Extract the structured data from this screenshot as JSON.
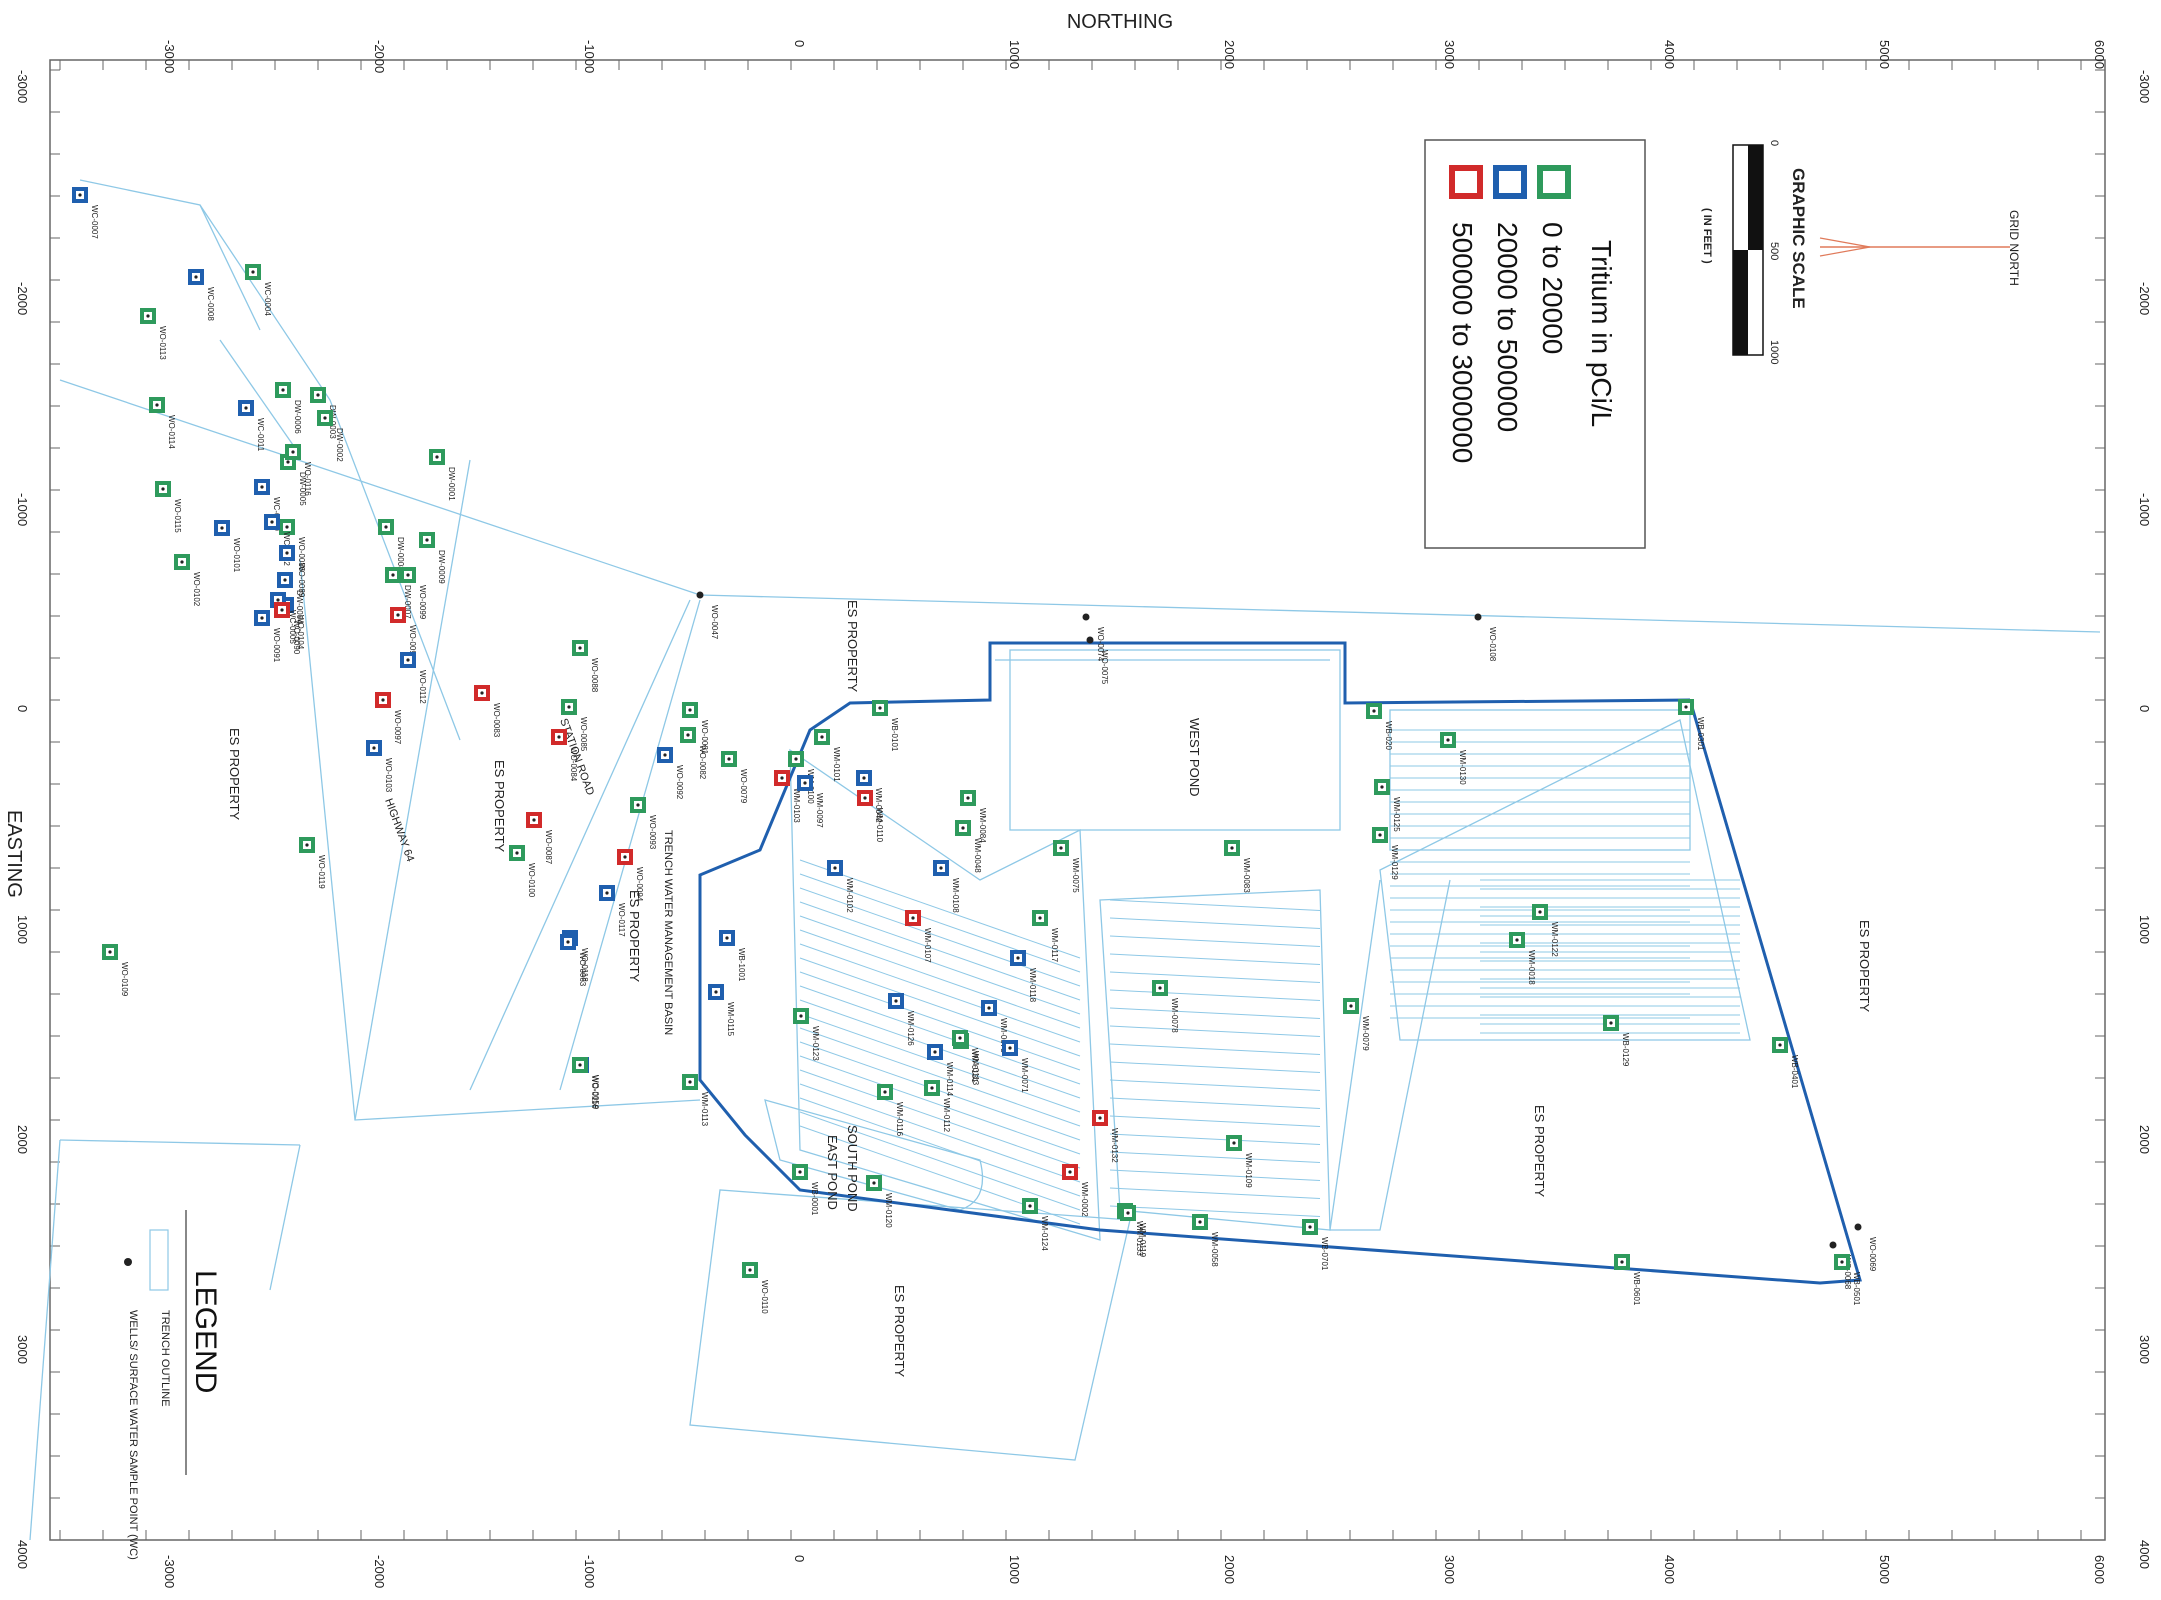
{
  "northing_title": "NORTHING",
  "easting_title": "EASTING",
  "northing_ticks": [
    "-3000",
    "-2000",
    "-1000",
    "0",
    "1000",
    "2000",
    "3000",
    "4000",
    "5000",
    "6000"
  ],
  "easting_ticks": [
    "-3000",
    "-2000",
    "-1000",
    "0",
    "1000",
    "2000",
    "3000",
    "4000"
  ],
  "grid_north": "GRID NORTH",
  "graphic_scale": {
    "title": "GRAPHIC SCALE",
    "unit": "( IN FEET )",
    "ticks": [
      "0",
      "500",
      "1000"
    ]
  },
  "tritium_legend": {
    "title": "Tritium in pCi/L",
    "ranges": [
      {
        "label": "0 to 20000",
        "color": "#2e9a5c"
      },
      {
        "label": "20000 to 500000",
        "color": "#1f5fae"
      },
      {
        "label": "500000 to 3000000",
        "color": "#d12a2a"
      }
    ]
  },
  "legend": {
    "title": "LEGEND",
    "items": [
      {
        "label": "TRENCH OUTLINE",
        "symbol": "trench-outline-swatch"
      },
      {
        "label": "WELLS/ SURFACE WATER SAMPLE POINT (WC)",
        "symbol": "well-dot"
      }
    ]
  },
  "area_labels": [
    {
      "key": "es_property_right",
      "text": "ES PROPERTY"
    },
    {
      "key": "es_property_rc",
      "text": "ES PROPERTY"
    },
    {
      "key": "es_property_center",
      "text": "ES PROPERTY"
    },
    {
      "key": "es_property_left",
      "text": "ES PROPERTY"
    },
    {
      "key": "es_property_lc",
      "text": "ES PROPERTY"
    },
    {
      "key": "es_property_basin",
      "text": "ES PROPERTY"
    },
    {
      "key": "es_property_top",
      "text": "ES PROPERTY"
    },
    {
      "key": "west_pond",
      "text": "WEST POND"
    },
    {
      "key": "south_pond",
      "text": "SOUTH POND"
    },
    {
      "key": "east_pond",
      "text": "EAST POND"
    },
    {
      "key": "trench_basin",
      "text": "TRENCH WATER MANAGEMENT BASIN"
    },
    {
      "key": "highway",
      "text": "HIGHWAY 64"
    },
    {
      "key": "station_road",
      "text": "STATION ROAD"
    }
  ],
  "wells": [
    {
      "id": "WC-0007",
      "c": "b"
    },
    {
      "id": "WC-0004",
      "c": "g"
    },
    {
      "id": "WC-0008",
      "c": "b"
    },
    {
      "id": "WO-0113",
      "c": "g"
    },
    {
      "id": "WC-0011",
      "c": "b"
    },
    {
      "id": "DW-0006",
      "c": "g"
    },
    {
      "id": "DW-0003",
      "c": "g"
    },
    {
      "id": "DW-0002",
      "c": "g"
    },
    {
      "id": "WO-0114",
      "c": "g"
    },
    {
      "id": "DW-0005",
      "c": "g"
    },
    {
      "id": "WO-0116",
      "c": "g"
    },
    {
      "id": "WC-0010",
      "c": "b"
    },
    {
      "id": "WO-0086",
      "c": "g"
    },
    {
      "id": "WC-0002",
      "c": "b"
    },
    {
      "id": "WO-0101",
      "c": "b"
    },
    {
      "id": "WO-0115",
      "c": "g"
    },
    {
      "id": "WO-0089",
      "c": "b"
    },
    {
      "id": "DW-0004",
      "c": "b"
    },
    {
      "id": "WO-0104",
      "c": "b"
    },
    {
      "id": "WC-0005",
      "c": "b"
    },
    {
      "id": "WO-0090",
      "c": "r"
    },
    {
      "id": "WO-0091",
      "c": "b"
    },
    {
      "id": "WO-0102",
      "c": "g"
    },
    {
      "id": "DW-0001",
      "c": "g"
    },
    {
      "id": "DW-0008",
      "c": "g"
    },
    {
      "id": "DW-0009",
      "c": "g"
    },
    {
      "id": "DW-0007",
      "c": "g"
    },
    {
      "id": "WO-0099",
      "c": "g"
    },
    {
      "id": "WO-0098",
      "c": "r"
    },
    {
      "id": "WO-0112",
      "c": "b"
    },
    {
      "id": "WO-0097",
      "c": "r"
    },
    {
      "id": "WO-0103",
      "c": "b"
    },
    {
      "id": "WO-0119",
      "c": "g"
    },
    {
      "id": "WO-0109",
      "c": "g"
    },
    {
      "id": "WO-0088",
      "c": "g"
    },
    {
      "id": "WO-0083",
      "c": "r"
    },
    {
      "id": "WO-0085",
      "c": "g"
    },
    {
      "id": "WO-0084",
      "c": "r"
    },
    {
      "id": "WO-0087",
      "c": "r"
    },
    {
      "id": "WO-0100",
      "c": "g"
    },
    {
      "id": "WO-0093",
      "c": "g"
    },
    {
      "id": "WO-0094",
      "c": "r"
    },
    {
      "id": "WO-0117",
      "c": "b"
    },
    {
      "id": "WO-0118",
      "c": "b"
    },
    {
      "id": "WO-0063",
      "c": "b"
    },
    {
      "id": "WO-0059",
      "c": "b"
    },
    {
      "id": "WO-0116",
      "c": "g"
    },
    {
      "id": "WO-0081",
      "c": "g"
    },
    {
      "id": "WO-0092",
      "c": "b"
    },
    {
      "id": "WO-0082",
      "c": "g"
    },
    {
      "id": "WO-0079",
      "c": "g"
    },
    {
      "id": "WO-0047",
      "c": "d"
    },
    {
      "id": "WB-0101",
      "c": "g"
    },
    {
      "id": "WM-0101",
      "c": "g"
    },
    {
      "id": "WM-0100",
      "c": "g"
    },
    {
      "id": "WM-0103",
      "c": "r"
    },
    {
      "id": "WM-0097",
      "c": "b"
    },
    {
      "id": "WM-0102",
      "c": "b"
    },
    {
      "id": "WM-0042",
      "c": "b"
    },
    {
      "id": "WM-0110",
      "c": "r"
    },
    {
      "id": "WM-0084",
      "c": "g"
    },
    {
      "id": "WM-0048",
      "c": "g"
    },
    {
      "id": "WM-0108",
      "c": "b"
    },
    {
      "id": "WM-0075",
      "c": "g"
    },
    {
      "id": "WM-0117",
      "c": "g"
    },
    {
      "id": "WM-0118",
      "c": "b"
    },
    {
      "id": "WM-0107",
      "c": "r"
    },
    {
      "id": "WM-0073",
      "c": "b"
    },
    {
      "id": "WM-0071",
      "c": "b"
    },
    {
      "id": "WM-0113",
      "c": "g"
    },
    {
      "id": "WM-0126",
      "c": "b"
    },
    {
      "id": "WM-0114",
      "c": "b"
    },
    {
      "id": "WM-0123",
      "c": "g"
    },
    {
      "id": "WM-0116",
      "c": "g"
    },
    {
      "id": "WM-0112",
      "c": "g"
    },
    {
      "id": "WM-0131",
      "c": "g"
    },
    {
      "id": "WM-0078",
      "c": "g"
    },
    {
      "id": "WM-0083",
      "c": "g"
    },
    {
      "id": "WB-1001",
      "c": "b"
    },
    {
      "id": "WM-0115",
      "c": "b"
    },
    {
      "id": "WM-0113",
      "c": "g"
    },
    {
      "id": "WB-0001",
      "c": "g"
    },
    {
      "id": "WM-0120",
      "c": "g"
    },
    {
      "id": "WO-0110",
      "c": "g"
    },
    {
      "id": "WM-0124",
      "c": "g"
    },
    {
      "id": "WM-0133",
      "c": "g"
    },
    {
      "id": "WM-0132",
      "c": "r"
    },
    {
      "id": "WM-0002",
      "c": "r"
    },
    {
      "id": "WM-0119",
      "c": "g"
    },
    {
      "id": "WM-0058",
      "c": "g"
    },
    {
      "id": "WM-0109",
      "c": "g"
    },
    {
      "id": "WB-0701",
      "c": "g"
    },
    {
      "id": "WM-0079",
      "c": "g"
    },
    {
      "id": "WB-020",
      "c": "g"
    },
    {
      "id": "WM-0130",
      "c": "g"
    },
    {
      "id": "WM-0125",
      "c": "g"
    },
    {
      "id": "WM-0129",
      "c": "g"
    },
    {
      "id": "WO-0108",
      "c": "d"
    },
    {
      "id": "WM-0018",
      "c": "g"
    },
    {
      "id": "WM-0122",
      "c": "g"
    },
    {
      "id": "WB-0301",
      "c": "g"
    },
    {
      "id": "WB-0129",
      "c": "g"
    },
    {
      "id": "WB-0401",
      "c": "g"
    },
    {
      "id": "WB-0601",
      "c": "g"
    },
    {
      "id": "WO-0068",
      "c": "d"
    },
    {
      "id": "WO-0069",
      "c": "d"
    },
    {
      "id": "WO-0074",
      "c": "d"
    },
    {
      "id": "WO-0075",
      "c": "d"
    },
    {
      "id": "WB-0501",
      "c": "g"
    }
  ]
}
